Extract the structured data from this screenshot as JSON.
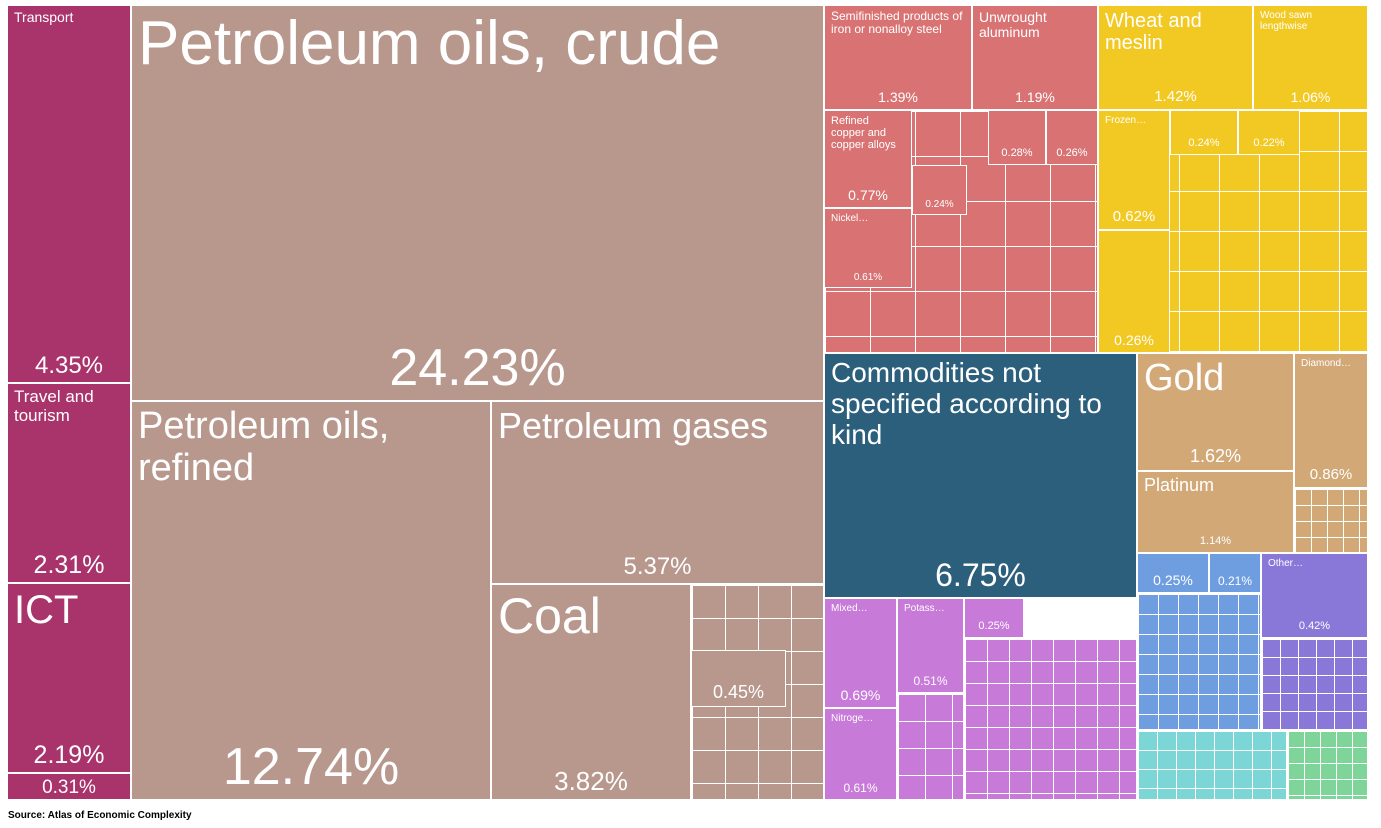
{
  "chart_data": {
    "type": "treemap",
    "source": "Source: Atlas of Economic Complexity",
    "categories": [
      "Transport",
      "Travel and tourism",
      "ICT",
      null,
      "Petroleum oils, crude",
      "Petroleum oils, refined",
      "Petroleum gases",
      "Coal",
      null,
      "Semifinished products of iron or nonalloy steel",
      "Unwrought aluminum",
      "Refined copper and copper alloys",
      null,
      null,
      null,
      "Nickel…",
      "Wheat and meslin",
      "Wood sawn lengthwise",
      "Frozen…",
      null,
      null,
      null,
      "Commodities not specified according to kind",
      "Gold",
      "Platinum",
      "Diamond…",
      null,
      null,
      "Other…",
      "Mixed…",
      "Potass…",
      null,
      "Nitroge…"
    ],
    "values": [
      4.35,
      2.31,
      2.19,
      0.31,
      24.23,
      12.74,
      5.37,
      3.82,
      0.45,
      1.39,
      1.19,
      0.77,
      0.24,
      0.28,
      0.26,
      0.61,
      1.42,
      1.06,
      0.62,
      0.24,
      0.22,
      0.26,
      6.75,
      1.62,
      1.14,
      0.86,
      0.25,
      0.21,
      0.42,
      0.69,
      0.51,
      0.25,
      0.61
    ],
    "value_labels": [
      "4.35%",
      "2.31%",
      "2.19%",
      "0.31%",
      "24.23%",
      "12.74%",
      "5.37%",
      "3.82%",
      "0.45%",
      "1.39%",
      "1.19%",
      "0.77%",
      "0.24%",
      "0.28%",
      "0.26%",
      "0.61%",
      "1.42%",
      "1.06%",
      "0.62%",
      "0.24%",
      "0.22%",
      "0.26%",
      "6.75%",
      "1.62%",
      "1.14%",
      "0.86%",
      "0.25%",
      "0.21%",
      "0.42%",
      "0.69%",
      "0.51%",
      "0.25%",
      "0.61%"
    ],
    "colors": [
      "#a9336b",
      "#a9336b",
      "#a9336b",
      "#a9336b",
      "#b8978d",
      "#b8978d",
      "#b8978d",
      "#b8978d",
      "#b8978d",
      "#d97373",
      "#d97373",
      "#d97373",
      "#d97373",
      "#d97373",
      "#d97373",
      "#d97373",
      "#f2c922",
      "#f2c922",
      "#f2c922",
      "#f2c922",
      "#f2c922",
      "#f2c922",
      "#2c5f7c",
      "#d2a877",
      "#d2a877",
      "#d2a877",
      "#6f9ee0",
      "#6f9ee0",
      "#8a78d8",
      "#c77ad8",
      "#c77ad8",
      "#c77ad8",
      "#c77ad8"
    ]
  }
}
